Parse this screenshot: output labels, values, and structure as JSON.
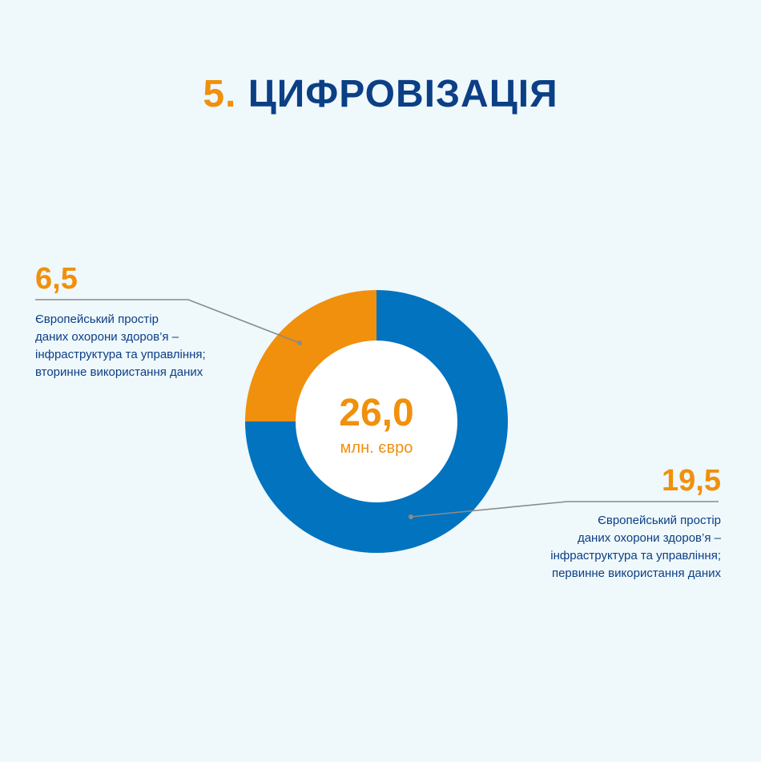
{
  "title": {
    "number": "5.",
    "text": "ЦИФРОВІЗАЦІЯ"
  },
  "center": {
    "value": "26,0",
    "unit": "млн. євро"
  },
  "colors": {
    "blue": "#0173bf",
    "orange": "#f0900c",
    "navy": "#0b3f86"
  },
  "chart_data": {
    "type": "pie",
    "donut": true,
    "total": 26.0,
    "unit": "млн. євро",
    "slices": [
      {
        "value": 6.5,
        "label": "6,5",
        "color": "#f0900c",
        "description": [
          "Європейський простір",
          "даних охорони здоров’я –",
          "інфраструктура та управління;",
          "вторинне використання даних"
        ]
      },
      {
        "value": 19.5,
        "label": "19,5",
        "color": "#0173bf",
        "description": [
          "Європейський простір",
          "даних охорони здоров’я –",
          "інфраструктура та управління;",
          "первинне використання даних"
        ]
      }
    ]
  }
}
